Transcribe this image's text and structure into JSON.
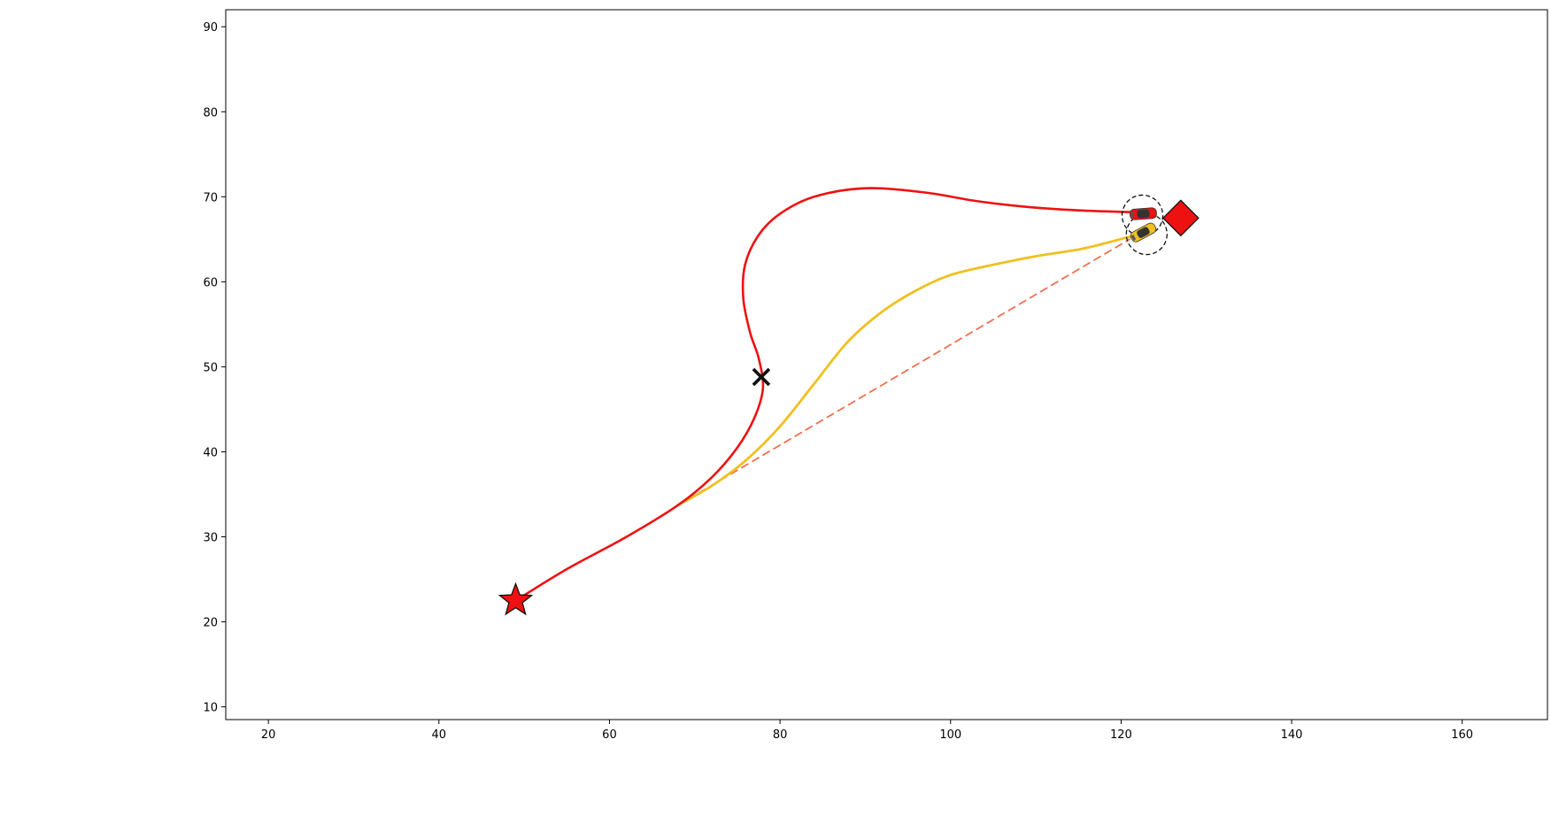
{
  "chart_data": {
    "type": "line",
    "title": "",
    "xlabel": "",
    "ylabel": "",
    "xlim": [
      15,
      170
    ],
    "ylim": [
      8.5,
      92
    ],
    "x_ticks": [
      20,
      40,
      60,
      80,
      100,
      120,
      140,
      160
    ],
    "y_ticks": [
      10,
      20,
      30,
      40,
      50,
      60,
      70,
      80,
      90
    ],
    "grid": false,
    "series": [
      {
        "name": "red-trajectory",
        "style": "solid",
        "points": [
          [
            49,
            22.5
          ],
          [
            55,
            26.2
          ],
          [
            62,
            30.0
          ],
          [
            68,
            33.7
          ],
          [
            72,
            37.0
          ],
          [
            75,
            40.5
          ],
          [
            77,
            44.0
          ],
          [
            78,
            47.5
          ],
          [
            77.5,
            51.0
          ],
          [
            76.5,
            54.0
          ],
          [
            75.7,
            58.0
          ],
          [
            75.9,
            62.0
          ],
          [
            77.5,
            65.5
          ],
          [
            80,
            68.0
          ],
          [
            84,
            70.0
          ],
          [
            90,
            71.0
          ],
          [
            97,
            70.5
          ],
          [
            103,
            69.5
          ],
          [
            109,
            68.8
          ],
          [
            115,
            68.4
          ],
          [
            121,
            68.2
          ]
        ]
      },
      {
        "name": "yellow-trajectory",
        "style": "solid",
        "points": [
          [
            68,
            33.7
          ],
          [
            72,
            36.0
          ],
          [
            76,
            39.0
          ],
          [
            80,
            43.0
          ],
          [
            84,
            48.0
          ],
          [
            88,
            53.0
          ],
          [
            92,
            56.5
          ],
          [
            96,
            59.0
          ],
          [
            100,
            60.8
          ],
          [
            105,
            62.0
          ],
          [
            110,
            63.0
          ],
          [
            115,
            63.8
          ],
          [
            118,
            64.5
          ],
          [
            121,
            65.3
          ]
        ]
      },
      {
        "name": "dashed-line",
        "style": "dashed",
        "points": [
          [
            68,
            33.7
          ],
          [
            121,
            65.0
          ]
        ]
      }
    ],
    "markers": [
      {
        "name": "start-star",
        "shape": "star",
        "x": 49,
        "y": 22.5
      },
      {
        "name": "waypoint-x",
        "shape": "x",
        "x": 77.8,
        "y": 48.8
      },
      {
        "name": "goal-diamond",
        "shape": "diamond",
        "x": 127,
        "y": 67.5
      },
      {
        "name": "red-car-circle",
        "shape": "circle",
        "x": 122.5,
        "y": 67.8
      },
      {
        "name": "yellow-car-circle",
        "shape": "circle",
        "x": 123.0,
        "y": 65.6
      },
      {
        "name": "red-car",
        "shape": "car",
        "x": 122.6,
        "y": 68.0
      },
      {
        "name": "yellow-car",
        "shape": "car",
        "x": 122.6,
        "y": 65.8
      }
    ],
    "colors": {
      "red": "#ee1111",
      "yellow": "#f0c020",
      "dashed": "#f07050",
      "marker_red": "#ee1111",
      "black": "#111111"
    }
  }
}
